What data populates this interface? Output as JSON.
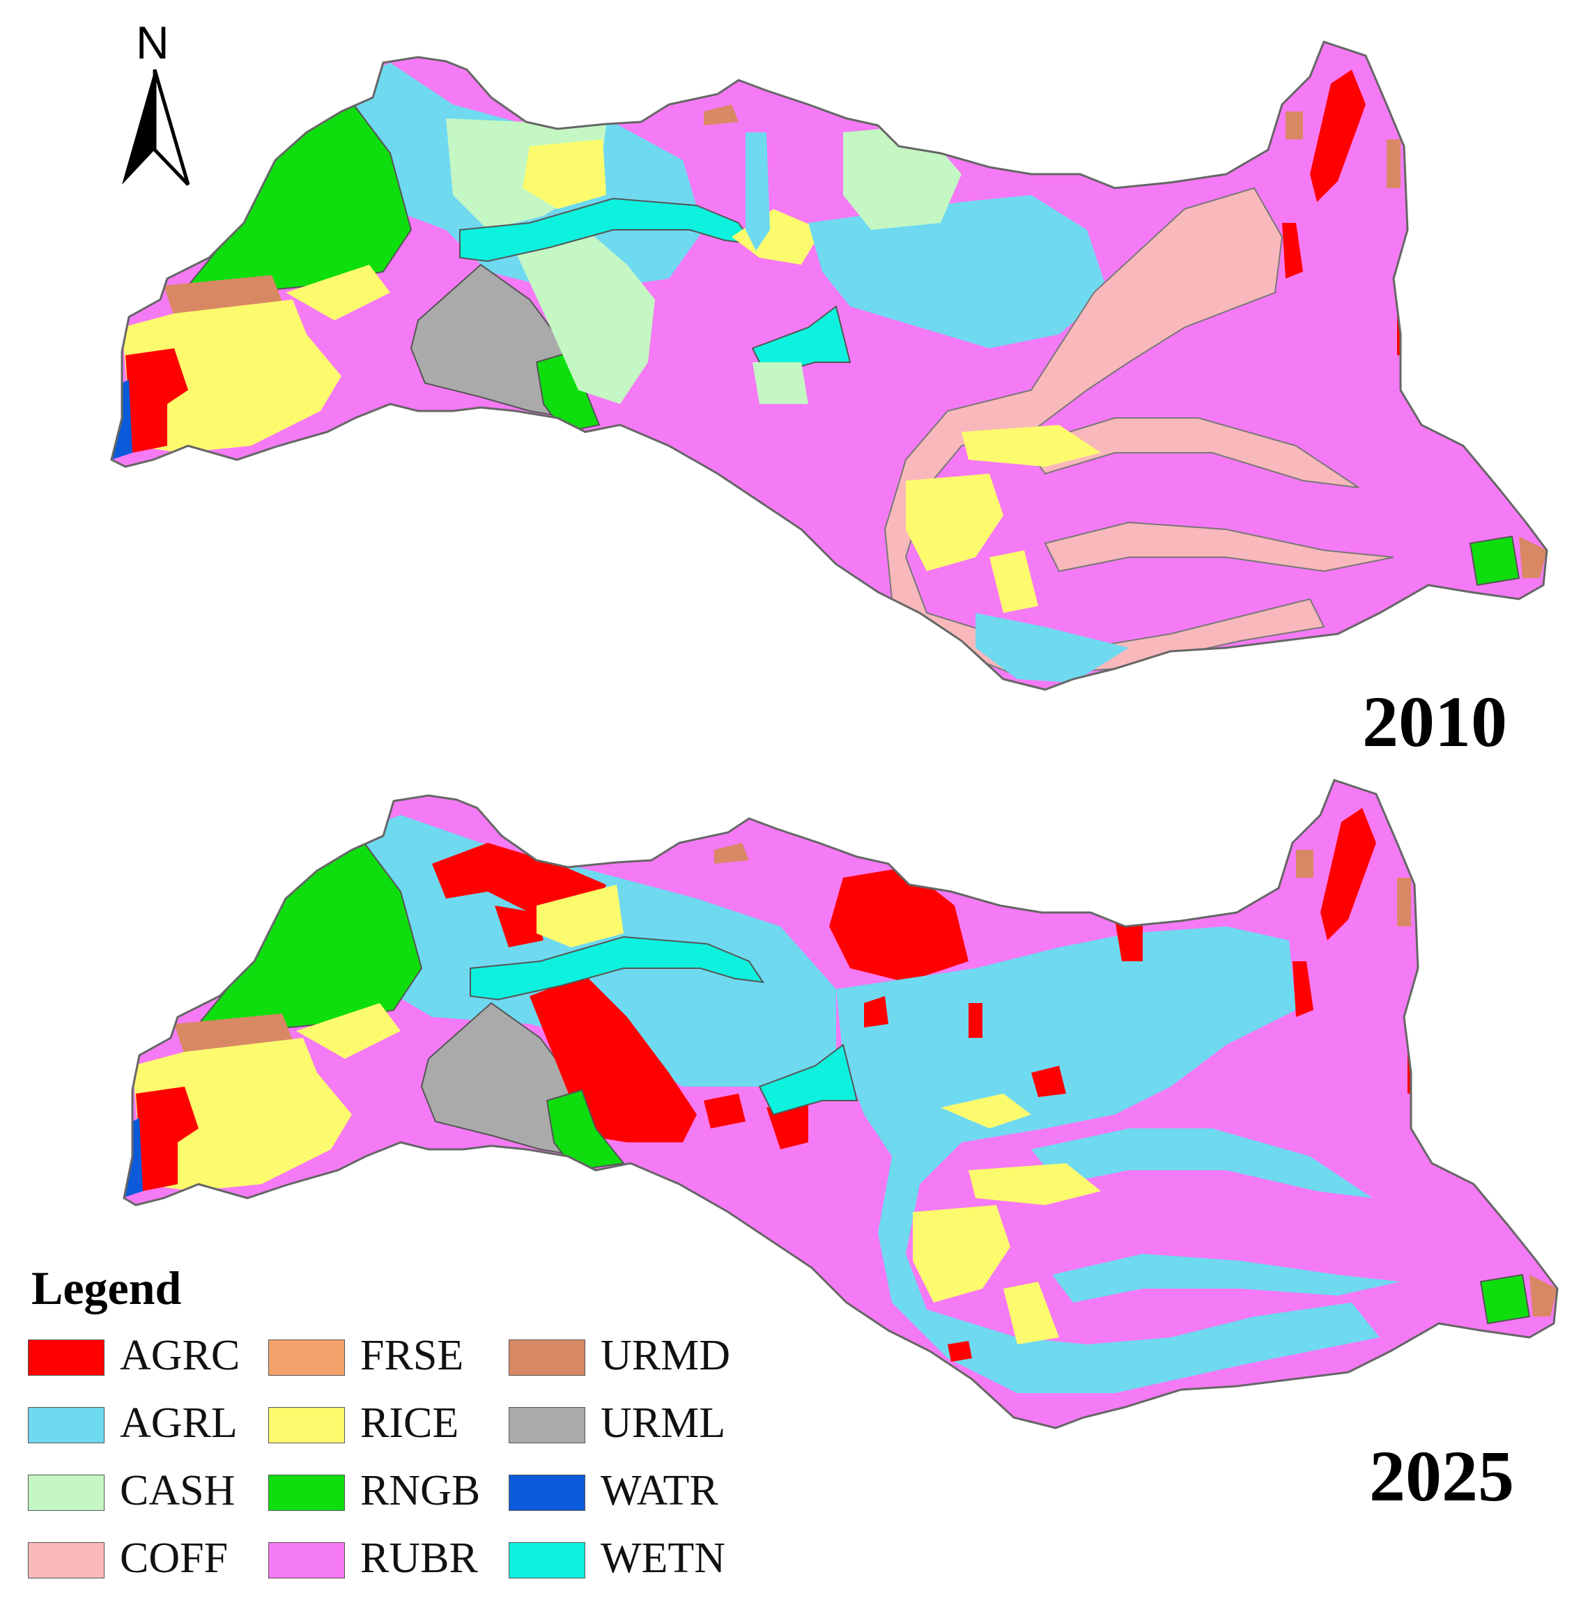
{
  "north_arrow": {
    "letter": "N"
  },
  "maps": [
    {
      "year": "2010"
    },
    {
      "year": "2025"
    }
  ],
  "legend": {
    "title": "Legend",
    "items": [
      {
        "code": "AGRC",
        "color": "#ff0000"
      },
      {
        "code": "AGRL",
        "color": "#6fd9f0"
      },
      {
        "code": "CASH",
        "color": "#c4f7c4"
      },
      {
        "code": "COFF",
        "color": "#f9b8bb"
      },
      {
        "code": "FRSE",
        "color": "#f2a26a"
      },
      {
        "code": "RICE",
        "color": "#fcfb6e"
      },
      {
        "code": "RNGB",
        "color": "#0ede0e"
      },
      {
        "code": "RUBR",
        "color": "#f57af5"
      },
      {
        "code": "URMD",
        "color": "#d98864"
      },
      {
        "code": "URML",
        "color": "#aaaaaa"
      },
      {
        "code": "WATR",
        "color": "#0b5ad9"
      },
      {
        "code": "WETN",
        "color": "#0df2de"
      }
    ]
  }
}
